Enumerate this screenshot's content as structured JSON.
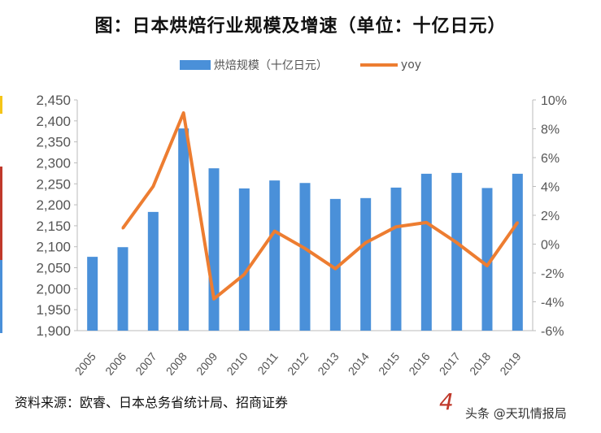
{
  "title": "图：日本烘焙行业规模及增速（单位：十亿日元）",
  "source": "资料来源：欧睿、日本总务省统计局、招商证券",
  "watermark": "头条 @天玑情报局",
  "decoration": "4",
  "chart_data": {
    "type": "bar+line",
    "categories": [
      "2005",
      "2006",
      "2007",
      "2008",
      "2009",
      "2010",
      "2011",
      "2012",
      "2013",
      "2014",
      "2015",
      "2016",
      "2017",
      "2018",
      "2019"
    ],
    "series": [
      {
        "name": "烘焙规模（十亿日元）",
        "type": "bar",
        "axis": "left",
        "color": "#4a90d9",
        "values": [
          2076,
          2099,
          2183,
          2382,
          2287,
          2239,
          2258,
          2252,
          2214,
          2216,
          2241,
          2274,
          2276,
          2240,
          2274
        ]
      },
      {
        "name": "yoy",
        "type": "line",
        "axis": "right",
        "color": "#ed7d31",
        "values": [
          null,
          1.1,
          4.0,
          9.1,
          -3.8,
          -2.1,
          0.9,
          -0.3,
          -1.7,
          0.1,
          1.2,
          1.5,
          0.1,
          -1.5,
          1.5
        ]
      }
    ],
    "left_axis": {
      "ylim": [
        1900,
        2450
      ],
      "ticks": [
        "1,900",
        "1,950",
        "2,000",
        "2,050",
        "2,100",
        "2,150",
        "2,200",
        "2,250",
        "2,300",
        "2,350",
        "2,400",
        "2,450"
      ]
    },
    "right_axis": {
      "ylim": [
        -6,
        10
      ],
      "ticks": [
        "-6%",
        "-4%",
        "-2%",
        "0%",
        "2%",
        "4%",
        "6%",
        "8%",
        "10%"
      ]
    },
    "grid": false,
    "legend": "top"
  }
}
